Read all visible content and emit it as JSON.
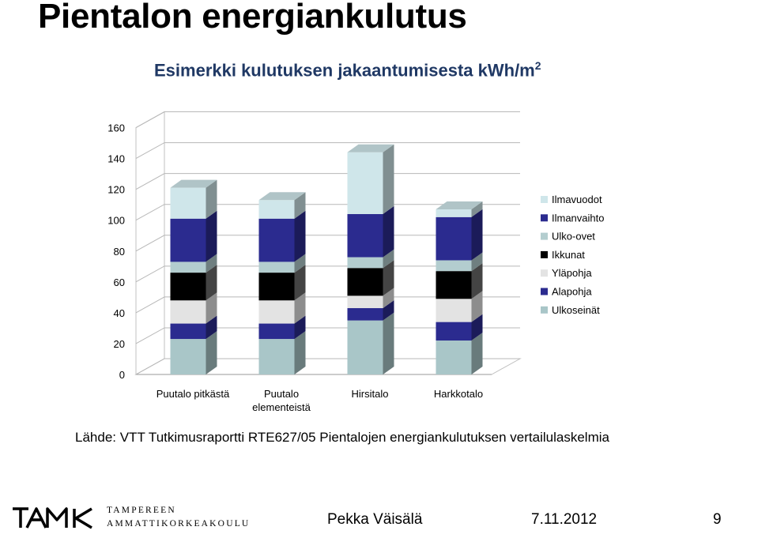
{
  "slide": {
    "title": "Pientalon energiankulutus",
    "subtitle_text": "Esimerkki kulutuksen jakaantumisesta kWh/m",
    "subtitle_sup": "2",
    "source": "Lähde: VTT Tutkimusraportti RTE627/05  Pientalojen energiankulutuksen vertailulaskelmia"
  },
  "footer": {
    "logo_word": "TAMK",
    "logo_line1": "TAMPEREEN",
    "logo_line2": "AMMATTIKORKEAKOULU",
    "author": "Pekka Väisälä",
    "date": "7.11.2012",
    "page": "9"
  },
  "chart_data": {
    "type": "bar",
    "stacked": true,
    "three_d": true,
    "categories": [
      "Puutalo pitkästä",
      "Puutalo elementeistä",
      "Hirsitalo",
      "Harkkotalo"
    ],
    "ylim": [
      0,
      160
    ],
    "yticks": [
      "0",
      "20",
      "40",
      "60",
      "80",
      "100",
      "120",
      "140",
      "160"
    ],
    "legend_position": "right",
    "series": [
      {
        "name": "Ulkoseinät",
        "color": "#a9c6c8",
        "values": [
          23,
          23,
          35,
          22
        ]
      },
      {
        "name": "Alapohja",
        "color": "#2b2b8f",
        "values": [
          10,
          10,
          8,
          12
        ]
      },
      {
        "name": "Yläpohja",
        "color": "#e3e3e3",
        "values": [
          15,
          15,
          8,
          15
        ]
      },
      {
        "name": "Ikkunat",
        "color": "#000000",
        "values": [
          18,
          18,
          18,
          18
        ]
      },
      {
        "name": "Ulko-ovet",
        "color": "#b3cdcf",
        "values": [
          7,
          7,
          7,
          7
        ]
      },
      {
        "name": "Ilmanvaihto",
        "color": "#2b2b8f",
        "values": [
          28,
          28,
          28,
          28
        ]
      },
      {
        "name": "Ilmavuodot",
        "color": "#cfe6ea",
        "values": [
          20,
          12,
          40,
          5
        ]
      }
    ]
  }
}
